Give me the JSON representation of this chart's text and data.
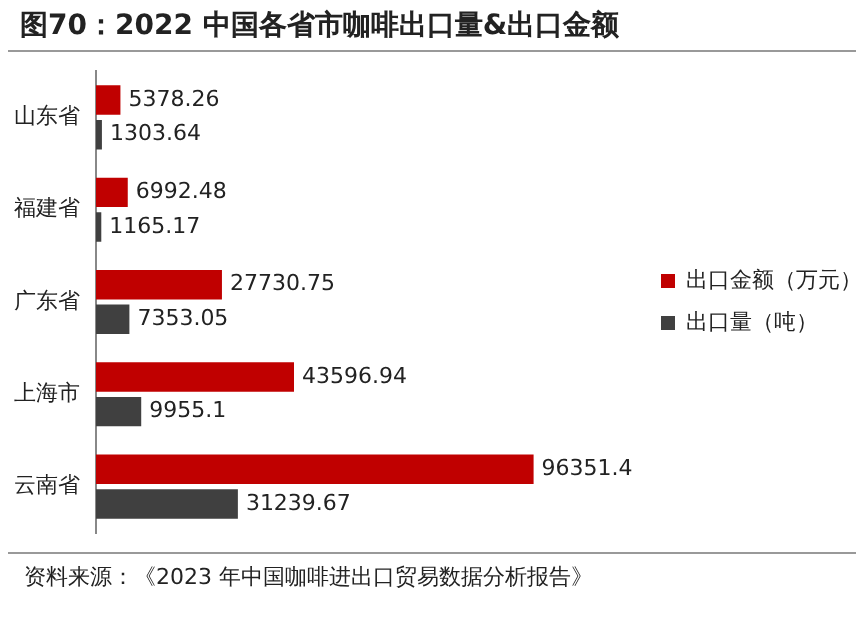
{
  "chart_data": {
    "type": "bar",
    "orientation": "horizontal",
    "title": "图70：2022 中国各省市咖啡出口量&出口金额",
    "categories": [
      "山东省",
      "福建省",
      "广东省",
      "上海市",
      "云南省"
    ],
    "series": [
      {
        "name": "出口金额（万元）",
        "color": "#c00000",
        "values": [
          5378.26,
          6992.48,
          27730.75,
          43596.94,
          96351.4
        ]
      },
      {
        "name": "出口量（吨）",
        "color": "#404040",
        "values": [
          1303.64,
          1165.17,
          7353.05,
          9955.1,
          31239.67
        ]
      }
    ],
    "data_labels": true,
    "legend": "right",
    "grid": false,
    "tick_labels": "y",
    "annotations": [
      "资料来源：《2023 年中国咖啡进出口贸易数据分析报告》"
    ]
  }
}
